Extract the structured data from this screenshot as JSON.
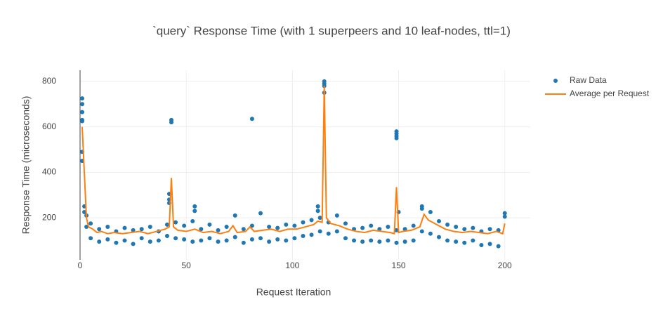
{
  "chart_data": {
    "type": "scatter",
    "title": "`query` Response Time (with 1 superpeers and 10 leaf-nodes, ttl=1)",
    "x_label": "Request Iteration",
    "y_label": "Response Time (microseconds)",
    "xlim": [
      0,
      212
    ],
    "ylim": [
      15,
      849
    ],
    "xticks": [
      0,
      50,
      100,
      150,
      200
    ],
    "yticks": [
      200,
      400,
      600,
      800
    ],
    "grid": true,
    "legend": "right",
    "series": [
      {
        "name": "Raw Data",
        "mode": "markers",
        "color": "#1f77b4",
        "x": [
          5,
          5,
          9,
          9,
          13,
          13,
          17,
          17,
          21,
          21,
          25,
          25,
          29,
          29,
          33,
          33,
          37,
          37,
          41,
          41,
          45,
          45,
          49,
          49,
          53,
          53,
          57,
          57,
          61,
          61,
          65,
          65,
          69,
          69,
          73,
          73,
          77,
          77,
          81,
          81,
          85,
          85,
          89,
          89,
          93,
          93,
          97,
          97,
          101,
          101,
          105,
          105,
          109,
          109,
          113,
          113,
          117,
          117,
          121,
          121,
          125,
          125,
          129,
          129,
          133,
          133,
          137,
          137,
          141,
          141,
          145,
          145,
          149,
          149,
          153,
          153,
          157,
          157,
          161,
          161,
          165,
          165,
          169,
          169,
          173,
          173,
          177,
          177,
          181,
          181,
          185,
          185,
          189,
          189,
          193,
          193,
          197,
          197,
          1,
          1,
          1,
          1,
          1,
          1,
          1,
          2,
          2,
          3,
          3,
          43,
          43,
          42,
          42,
          42,
          54,
          54,
          81,
          115,
          115,
          115,
          115,
          149,
          149,
          149,
          149,
          150,
          161,
          200,
          200,
          112,
          112
        ],
        "values": [
          175,
          110,
          150,
          95,
          160,
          105,
          140,
          90,
          155,
          100,
          145,
          85,
          150,
          110,
          160,
          95,
          140,
          100,
          170,
          120,
          180,
          110,
          165,
          105,
          185,
          95,
          150,
          100,
          170,
          110,
          145,
          95,
          160,
          100,
          210,
          115,
          150,
          90,
          165,
          105,
          220,
          110,
          160,
          95,
          155,
          105,
          170,
          100,
          165,
          110,
          180,
          120,
          190,
          125,
          200,
          140,
          180,
          130,
          210,
          140,
          175,
          110,
          150,
          100,
          155,
          95,
          165,
          100,
          150,
          95,
          160,
          100,
          145,
          90,
          150,
          95,
          165,
          100,
          240,
          140,
          225,
          130,
          185,
          115,
          170,
          100,
          160,
          95,
          150,
          90,
          155,
          100,
          140,
          80,
          150,
          85,
          145,
          75,
          725,
          700,
          665,
          630,
          625,
          490,
          450,
          250,
          225,
          210,
          160,
          630,
          620,
          305,
          280,
          265,
          250,
          230,
          635,
          800,
          790,
          780,
          750,
          580,
          570,
          560,
          550,
          225,
          250,
          220,
          205,
          250,
          230
        ]
      },
      {
        "name": "Average per Request",
        "mode": "lines",
        "color": "#ff7f0e",
        "x": [
          1,
          2,
          3,
          4,
          6,
          8,
          10,
          13,
          16,
          20,
          24,
          28,
          32,
          36,
          40,
          42,
          43,
          44,
          46,
          50,
          54,
          58,
          62,
          66,
          70,
          72,
          74,
          78,
          80,
          82,
          86,
          90,
          94,
          98,
          102,
          106,
          110,
          112,
          114,
          115,
          116,
          118,
          122,
          126,
          130,
          134,
          138,
          142,
          146,
          148,
          149,
          150,
          152,
          156,
          160,
          162,
          164,
          168,
          172,
          176,
          180,
          184,
          188,
          192,
          196,
          199,
          200
        ],
        "values": [
          600,
          400,
          200,
          160,
          150,
          135,
          140,
          130,
          135,
          130,
          135,
          140,
          130,
          140,
          150,
          160,
          375,
          160,
          145,
          140,
          150,
          135,
          140,
          130,
          140,
          165,
          135,
          140,
          160,
          140,
          145,
          150,
          140,
          150,
          150,
          160,
          170,
          185,
          180,
          780,
          200,
          175,
          165,
          150,
          140,
          135,
          145,
          140,
          135,
          130,
          335,
          135,
          140,
          145,
          160,
          215,
          190,
          170,
          150,
          140,
          135,
          140,
          135,
          130,
          140,
          130,
          175
        ]
      }
    ]
  }
}
